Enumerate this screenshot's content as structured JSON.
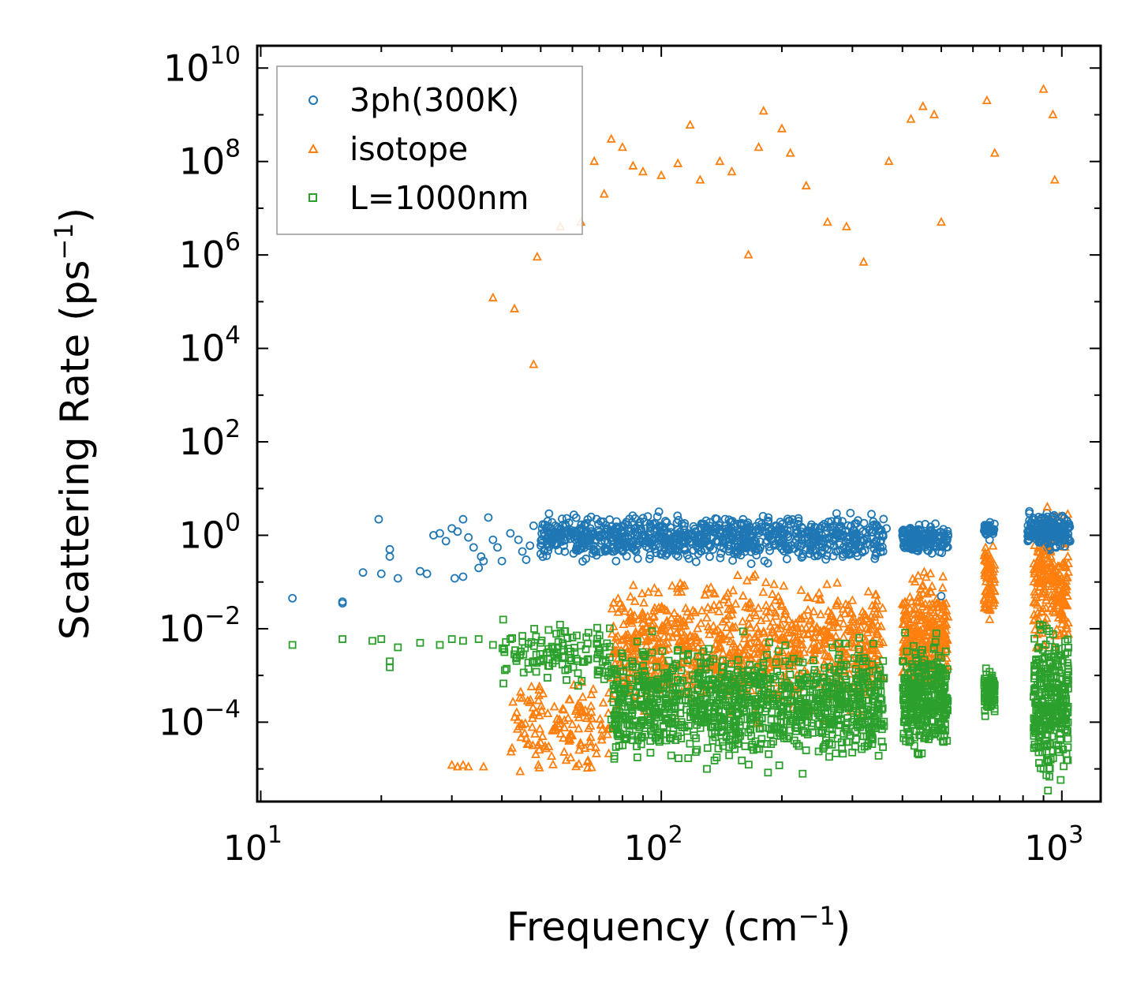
{
  "chart_data": {
    "type": "scatter",
    "x_scale": "log",
    "y_scale": "log",
    "xlabel": "Frequency (cm",
    "xlabel_sup": "−1",
    "xlabel_end": ")",
    "ylabel": "Scattering Rate (ps",
    "ylabel_sup": "−1",
    "ylabel_end": ")",
    "xlim": [
      9.8,
      1250
    ],
    "ylim": [
      2e-06,
      30000000000
    ],
    "x_ticks": [
      {
        "value": 10,
        "base": "10",
        "exp": "1"
      },
      {
        "value": 100,
        "base": "10",
        "exp": "2"
      },
      {
        "value": 1000,
        "base": "10",
        "exp": "3"
      }
    ],
    "y_ticks": [
      {
        "value": 0.0001,
        "base": "10",
        "exp": "−4"
      },
      {
        "value": 0.01,
        "base": "10",
        "exp": "−2"
      },
      {
        "value": 1,
        "base": "10",
        "exp": "0"
      },
      {
        "value": 100,
        "base": "10",
        "exp": "2"
      },
      {
        "value": 10000,
        "base": "10",
        "exp": "4"
      },
      {
        "value": 1000000,
        "base": "10",
        "exp": "6"
      },
      {
        "value": 100000000,
        "base": "10",
        "exp": "8"
      },
      {
        "value": 10000000000,
        "base": "10",
        "exp": "10"
      }
    ],
    "legend_position": "top-left",
    "series": [
      {
        "name": "3ph(300K)",
        "marker": "circle",
        "color": "#1f77b4",
        "points": [
          [
            12,
            0.045
          ],
          [
            16,
            0.035
          ],
          [
            16,
            0.038
          ],
          [
            18,
            0.16
          ],
          [
            19.7,
            2.2
          ],
          [
            20,
            0.15
          ],
          [
            21,
            0.35
          ],
          [
            21,
            0.5
          ],
          [
            22,
            0.12
          ],
          [
            25,
            0.17
          ],
          [
            26,
            0.15
          ],
          [
            27,
            1.0
          ],
          [
            28,
            1.1
          ],
          [
            29,
            0.75
          ],
          [
            30,
            1.4
          ],
          [
            30.5,
            0.12
          ],
          [
            31,
            1.2
          ],
          [
            32,
            2.2
          ],
          [
            32,
            0.13
          ],
          [
            33,
            0.9
          ],
          [
            34,
            0.55
          ],
          [
            35,
            0.2
          ],
          [
            35.5,
            0.35
          ],
          [
            36,
            0.28
          ],
          [
            37,
            2.4
          ],
          [
            38,
            0.8
          ],
          [
            39,
            0.55
          ],
          [
            40,
            0.28
          ],
          [
            42,
            1.1
          ],
          [
            44,
            0.8
          ],
          [
            45,
            0.45
          ],
          [
            46,
            0.3
          ],
          [
            47,
            0.6
          ],
          [
            48,
            1.6
          ],
          [
            50,
            0.4
          ],
          [
            52,
            2.0
          ],
          [
            55,
            1.5
          ],
          [
            58,
            1.1
          ],
          [
            62,
            0.6
          ],
          [
            65,
            1.8
          ],
          [
            70,
            0.9
          ],
          [
            80,
            1.6
          ],
          [
            95,
            0.6
          ],
          [
            110,
            1.3
          ],
          [
            130,
            0.9
          ],
          [
            160,
            2.2
          ],
          [
            185,
            2.4
          ],
          [
            220,
            2.3
          ],
          [
            270,
            1.6
          ],
          [
            340,
            1.7
          ],
          [
            365,
            1.4
          ],
          [
            420,
            1.1
          ],
          [
            470,
            1.2
          ],
          [
            500,
            0.05
          ],
          [
            650,
            1.1
          ],
          [
            660,
            0.8
          ],
          [
            900,
            1.4
          ],
          [
            1000,
            2.4
          ]
        ]
      },
      {
        "name": "isotope",
        "marker": "triangle",
        "color": "#ff7f0e",
        "points": [
          [
            30,
            1.2e-05
          ],
          [
            31,
            1.1e-05
          ],
          [
            32,
            1.2e-05
          ],
          [
            33,
            1.1e-05
          ],
          [
            36,
            1.1e-05
          ],
          [
            38,
            120000
          ],
          [
            43,
            70000
          ],
          [
            48,
            4500
          ],
          [
            49,
            900000
          ],
          [
            56,
            4000000
          ],
          [
            63,
            5000000
          ],
          [
            68,
            100000000
          ],
          [
            72,
            20000000
          ],
          [
            75,
            300000000
          ],
          [
            80,
            200000000
          ],
          [
            85,
            80000000
          ],
          [
            90,
            60000000
          ],
          [
            100,
            50000000
          ],
          [
            110,
            90000000
          ],
          [
            118,
            600000000
          ],
          [
            125,
            40000000
          ],
          [
            140,
            100000000
          ],
          [
            150,
            60000000
          ],
          [
            165,
            1000000
          ],
          [
            175,
            200000000
          ],
          [
            180,
            1200000000
          ],
          [
            200,
            500000000
          ],
          [
            210,
            150000000
          ],
          [
            230,
            30000000
          ],
          [
            260,
            5000000
          ],
          [
            290,
            4000000
          ],
          [
            320,
            700000
          ],
          [
            370,
            100000000
          ],
          [
            420,
            800000000
          ],
          [
            450,
            1500000000
          ],
          [
            480,
            1000000000
          ],
          [
            500,
            5000000
          ],
          [
            650,
            2000000000
          ],
          [
            680,
            150000000
          ],
          [
            900,
            3500000000
          ],
          [
            950,
            1000000000
          ],
          [
            960,
            40000000
          ],
          [
            80,
            0.03
          ],
          [
            100,
            0.01
          ],
          [
            110,
            0.06
          ],
          [
            130,
            0.07
          ],
          [
            150,
            0.02
          ],
          [
            160,
            0.05
          ],
          [
            200,
            0.03
          ],
          [
            250,
            0.02
          ],
          [
            300,
            0.04
          ],
          [
            350,
            0.02
          ],
          [
            430,
            0.1
          ],
          [
            470,
            0.15
          ],
          [
            660,
            0.3
          ],
          [
            900,
            0.5
          ],
          [
            1000,
            0.02
          ],
          [
            920,
            4
          ]
        ]
      },
      {
        "name": "L=1000nm",
        "marker": "square",
        "color": "#2ca02c",
        "points": [
          [
            12,
            0.0045
          ],
          [
            16,
            0.006
          ],
          [
            19,
            0.0055
          ],
          [
            20,
            0.006
          ],
          [
            21,
            0.002
          ],
          [
            21,
            0.0015
          ],
          [
            22,
            0.004
          ],
          [
            25,
            0.005
          ],
          [
            28,
            0.0045
          ],
          [
            30,
            0.006
          ],
          [
            32,
            0.0055
          ],
          [
            35,
            0.006
          ],
          [
            38,
            0.0045
          ],
          [
            42,
            0.006
          ],
          [
            45,
            0.007
          ],
          [
            50,
            0.005
          ],
          [
            55,
            0.003
          ],
          [
            58,
            0.0008
          ],
          [
            62,
            0.0006
          ],
          [
            70,
            0.0012
          ],
          [
            80,
            0.0025
          ],
          [
            90,
            0.0008
          ],
          [
            110,
            5e-05
          ],
          [
            130,
            1e-05
          ],
          [
            160,
            0.0002
          ],
          [
            200,
            0.0006
          ],
          [
            260,
            0.0004
          ],
          [
            320,
            5e-05
          ],
          [
            355,
            0.0003
          ],
          [
            420,
            0.0005
          ],
          [
            470,
            0.0008
          ],
          [
            500,
            0.0001
          ],
          [
            650,
            0.0004
          ],
          [
            900,
            1e-05
          ],
          [
            1000,
            0.0015
          ]
        ]
      }
    ]
  }
}
